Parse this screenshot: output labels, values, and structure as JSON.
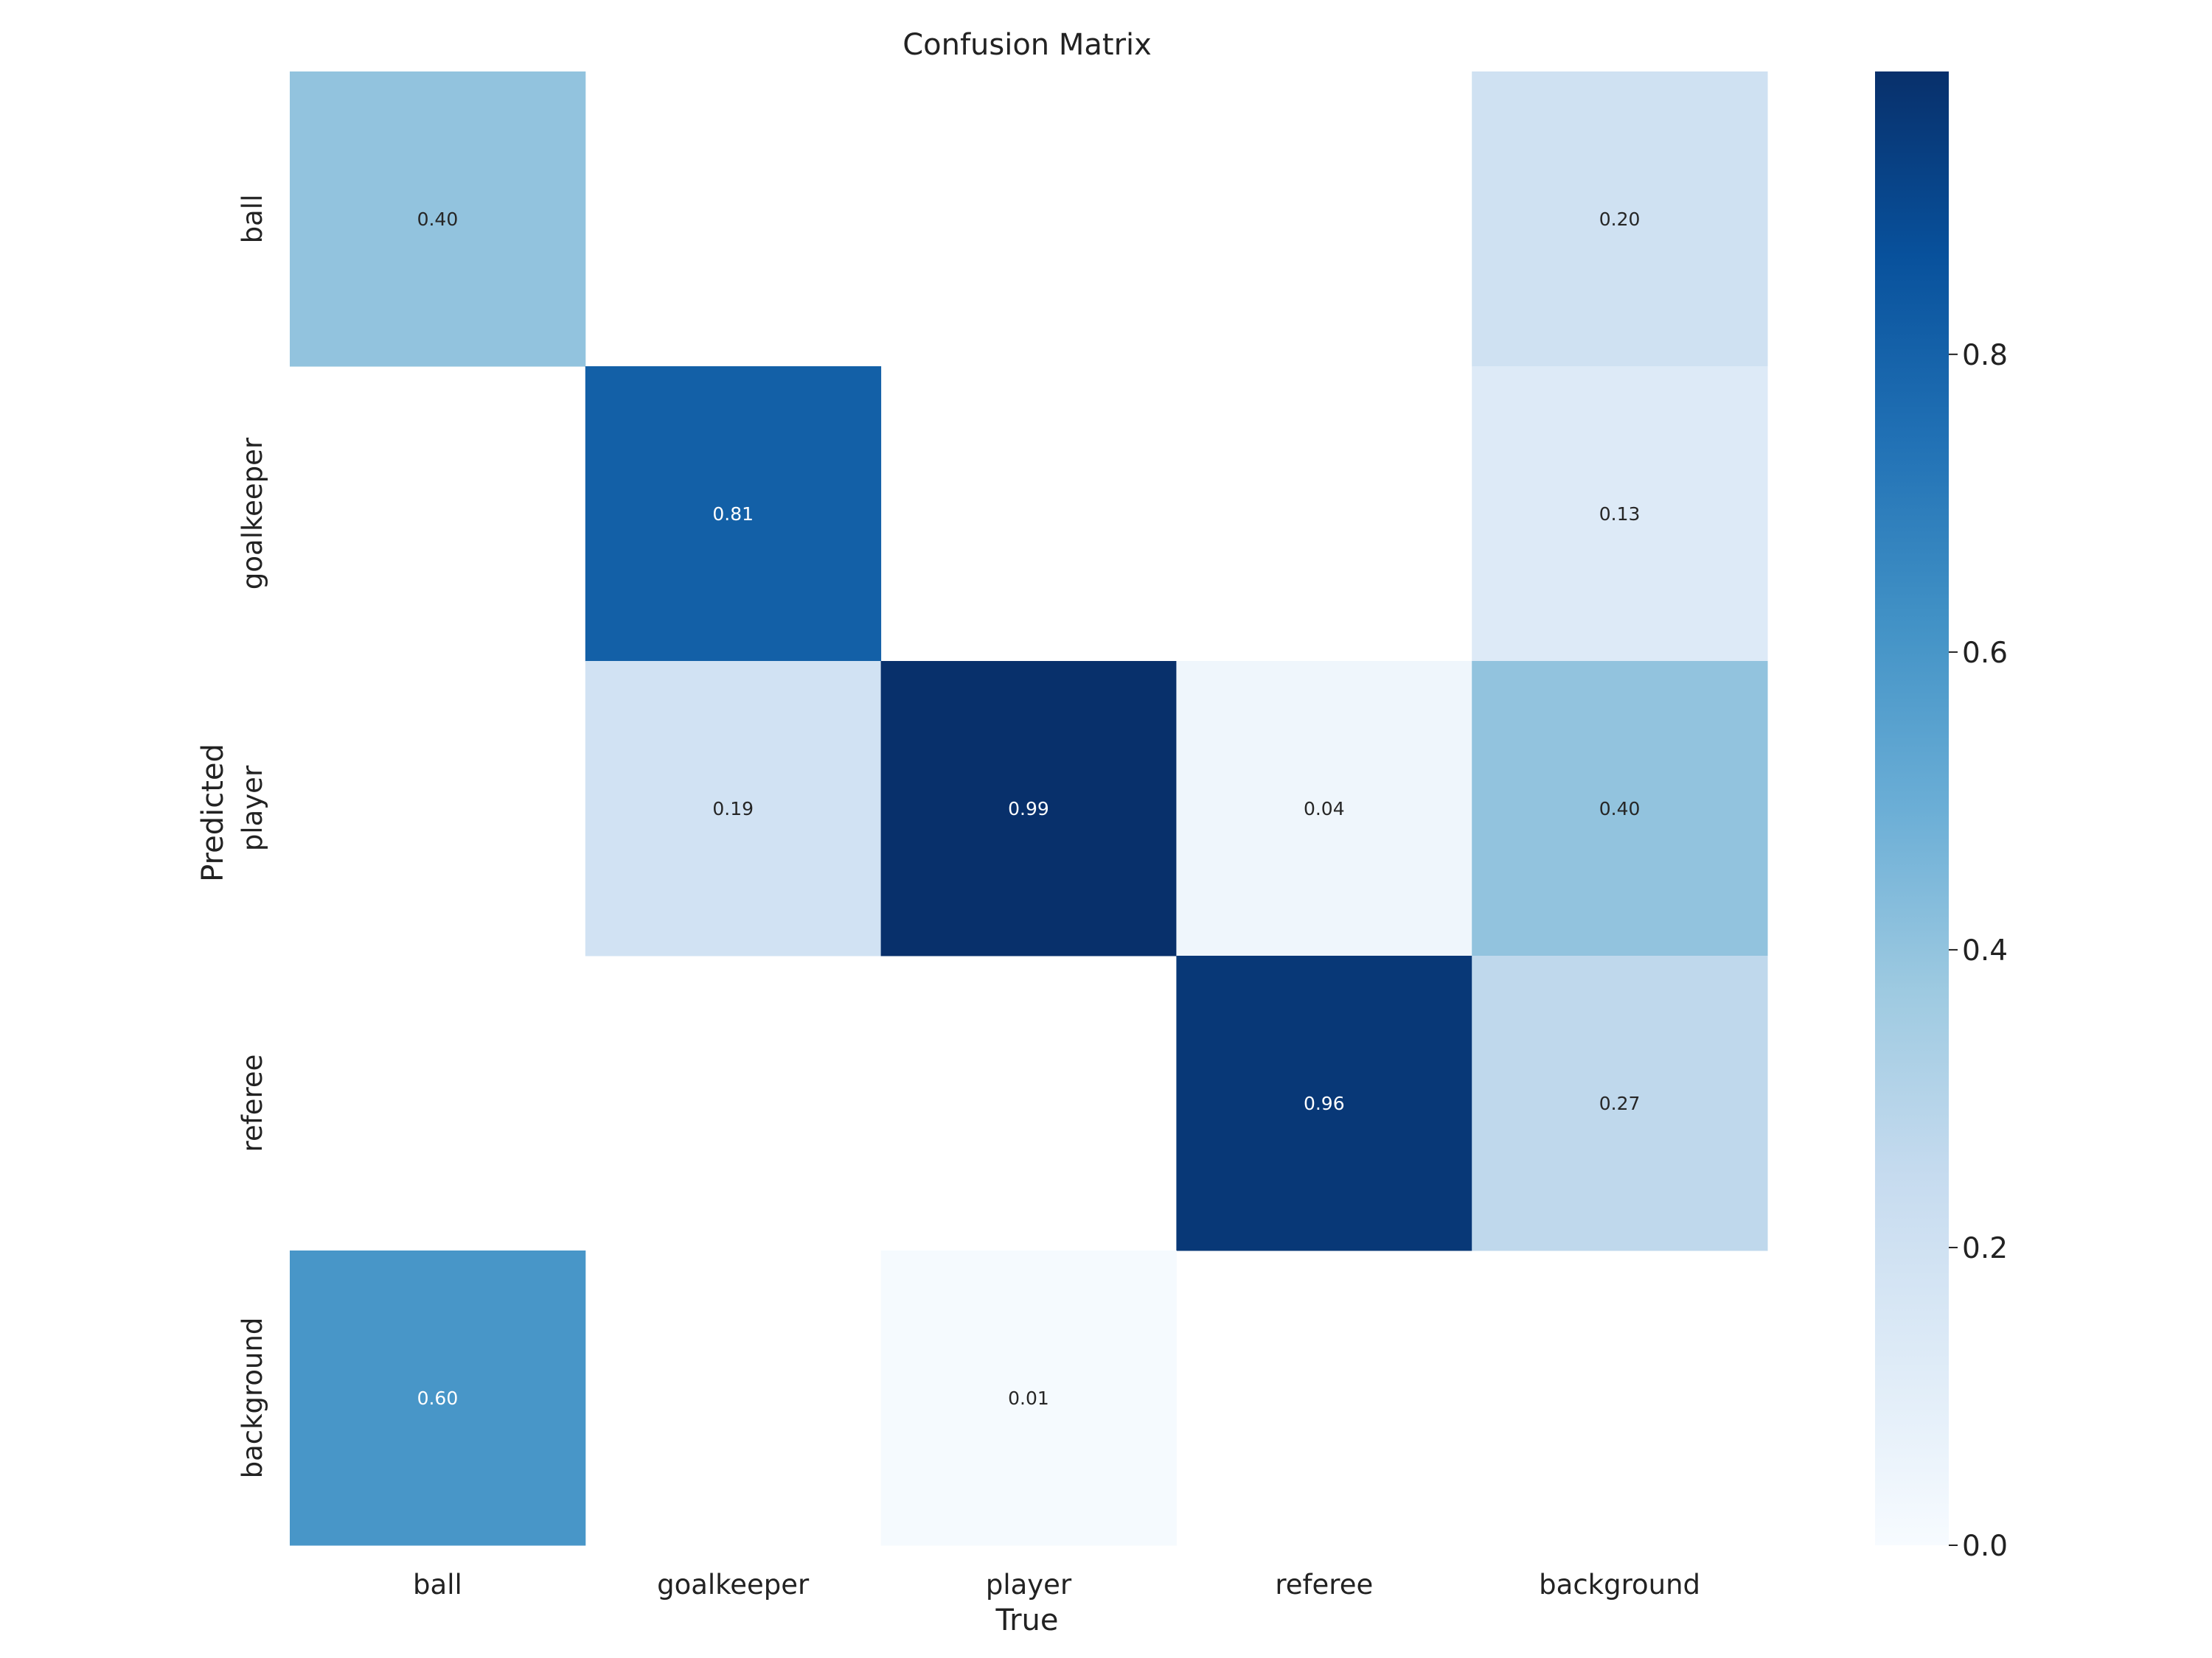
{
  "chart_data": {
    "type": "heatmap",
    "title": "Confusion Matrix",
    "xlabel": "True",
    "ylabel": "Predicted",
    "x_categories": [
      "ball",
      "goalkeeper",
      "player",
      "referee",
      "background"
    ],
    "y_categories": [
      "ball",
      "goalkeeper",
      "player",
      "referee",
      "background"
    ],
    "values": [
      [
        0.4,
        null,
        null,
        null,
        0.2
      ],
      [
        null,
        0.81,
        null,
        null,
        0.13
      ],
      [
        null,
        0.19,
        0.99,
        0.04,
        0.4
      ],
      [
        null,
        null,
        null,
        0.96,
        0.27
      ],
      [
        0.6,
        null,
        0.01,
        null,
        null
      ]
    ],
    "value_labels": [
      [
        "0.40",
        "",
        "",
        "",
        "0.20"
      ],
      [
        "",
        "0.81",
        "",
        "",
        "0.13"
      ],
      [
        "",
        "0.19",
        "0.99",
        "0.04",
        "0.40"
      ],
      [
        "",
        "",
        "",
        "0.96",
        "0.27"
      ],
      [
        "0.60",
        "",
        "0.01",
        "",
        ""
      ]
    ],
    "colormap": "Blues",
    "colorbar": {
      "vmin": 0.0,
      "vmax": 0.99,
      "ticks": [
        0.0,
        0.2,
        0.4,
        0.6,
        0.8
      ],
      "tick_labels": [
        "0.0",
        "0.2",
        "0.4",
        "0.6",
        "0.8"
      ]
    }
  }
}
